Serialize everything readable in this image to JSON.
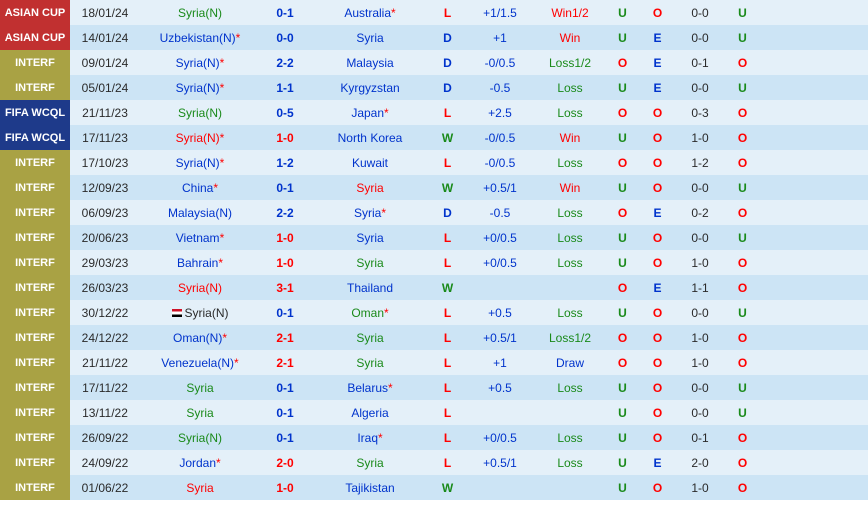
{
  "colors": {
    "row_light": "#e4f0f9",
    "row_dark": "#cce4f5",
    "comp_asian": "#c13030",
    "comp_interf": "#a9a244",
    "comp_wcql": "#1e3a8a",
    "text_default": "#2a2a2a",
    "text_blue": "#0033cc",
    "text_red": "#ff0000",
    "text_green": "#1a8a1a"
  },
  "competitions": {
    "asian": {
      "label": "ASIAN CUP",
      "bg": "#c13030"
    },
    "interf": {
      "label": "INTERF",
      "bg": "#a9a244"
    },
    "wcql": {
      "label": "FIFA WCQL",
      "bg": "#1e3a8a"
    }
  },
  "rows": [
    {
      "comp": "asian",
      "date": "18/01/24",
      "team1": "Syria(N)",
      "team1_color": "#1a8a1a",
      "score": "0-1",
      "score_color": "#0033cc",
      "team2": "Australia",
      "team2_color": "#0033cc",
      "team2_ast": true,
      "wdl": "L",
      "wdl_color": "#ff0000",
      "hcap": "+1/1.5",
      "hcap_color": "#0033cc",
      "odds": "Win1/2",
      "odds_color": "#ff0000",
      "uo1": "U",
      "uo1_color": "#1a8a1a",
      "uo2": "O",
      "uo2_color": "#ff0000",
      "half": "0-0",
      "uo3": "U",
      "uo3_color": "#1a8a1a"
    },
    {
      "comp": "asian",
      "date": "14/01/24",
      "team1": "Uzbekistan(N)",
      "team1_color": "#0033cc",
      "team1_ast": true,
      "score": "0-0",
      "score_color": "#0033cc",
      "team2": "Syria",
      "team2_color": "#0033cc",
      "wdl": "D",
      "wdl_color": "#0033cc",
      "hcap": "+1",
      "hcap_color": "#0033cc",
      "odds": "Win",
      "odds_color": "#ff0000",
      "uo1": "U",
      "uo1_color": "#1a8a1a",
      "uo2": "E",
      "uo2_color": "#0033cc",
      "half": "0-0",
      "uo3": "U",
      "uo3_color": "#1a8a1a"
    },
    {
      "comp": "interf",
      "date": "09/01/24",
      "team1": "Syria(N)",
      "team1_color": "#0033cc",
      "team1_ast": true,
      "score": "2-2",
      "score_color": "#0033cc",
      "team2": "Malaysia",
      "team2_color": "#0033cc",
      "wdl": "D",
      "wdl_color": "#0033cc",
      "hcap": "-0/0.5",
      "hcap_color": "#0033cc",
      "odds": "Loss1/2",
      "odds_color": "#1a8a1a",
      "uo1": "O",
      "uo1_color": "#ff0000",
      "uo2": "E",
      "uo2_color": "#0033cc",
      "half": "0-1",
      "uo3": "O",
      "uo3_color": "#ff0000"
    },
    {
      "comp": "interf",
      "date": "05/01/24",
      "team1": "Syria(N)",
      "team1_color": "#0033cc",
      "team1_ast": true,
      "score": "1-1",
      "score_color": "#0033cc",
      "team2": "Kyrgyzstan",
      "team2_color": "#0033cc",
      "wdl": "D",
      "wdl_color": "#0033cc",
      "hcap": "-0.5",
      "hcap_color": "#0033cc",
      "odds": "Loss",
      "odds_color": "#1a8a1a",
      "uo1": "U",
      "uo1_color": "#1a8a1a",
      "uo2": "E",
      "uo2_color": "#0033cc",
      "half": "0-0",
      "uo3": "U",
      "uo3_color": "#1a8a1a"
    },
    {
      "comp": "wcql",
      "date": "21/11/23",
      "team1": "Syria(N)",
      "team1_color": "#1a8a1a",
      "score": "0-5",
      "score_color": "#0033cc",
      "team2": "Japan",
      "team2_color": "#0033cc",
      "team2_ast": true,
      "wdl": "L",
      "wdl_color": "#ff0000",
      "hcap": "+2.5",
      "hcap_color": "#0033cc",
      "odds": "Loss",
      "odds_color": "#1a8a1a",
      "uo1": "O",
      "uo1_color": "#ff0000",
      "uo2": "O",
      "uo2_color": "#ff0000",
      "half": "0-3",
      "uo3": "O",
      "uo3_color": "#ff0000"
    },
    {
      "comp": "wcql",
      "date": "17/11/23",
      "team1": "Syria(N)",
      "team1_color": "#ff0000",
      "team1_ast": true,
      "score": "1-0",
      "score_color": "#ff0000",
      "team2": "North Korea",
      "team2_color": "#0033cc",
      "wdl": "W",
      "wdl_color": "#1a8a1a",
      "hcap": "-0/0.5",
      "hcap_color": "#0033cc",
      "odds": "Win",
      "odds_color": "#ff0000",
      "uo1": "U",
      "uo1_color": "#1a8a1a",
      "uo2": "O",
      "uo2_color": "#ff0000",
      "half": "1-0",
      "uo3": "O",
      "uo3_color": "#ff0000"
    },
    {
      "comp": "interf",
      "date": "17/10/23",
      "team1": "Syria(N)",
      "team1_color": "#0033cc",
      "team1_ast": true,
      "score": "1-2",
      "score_color": "#0033cc",
      "team2": "Kuwait",
      "team2_color": "#0033cc",
      "wdl": "L",
      "wdl_color": "#ff0000",
      "hcap": "-0/0.5",
      "hcap_color": "#0033cc",
      "odds": "Loss",
      "odds_color": "#1a8a1a",
      "uo1": "O",
      "uo1_color": "#ff0000",
      "uo2": "O",
      "uo2_color": "#ff0000",
      "half": "1-2",
      "uo3": "O",
      "uo3_color": "#ff0000"
    },
    {
      "comp": "interf",
      "date": "12/09/23",
      "team1": "China",
      "team1_color": "#0033cc",
      "team1_ast": true,
      "score": "0-1",
      "score_color": "#0033cc",
      "team2": "Syria",
      "team2_color": "#ff0000",
      "wdl": "W",
      "wdl_color": "#1a8a1a",
      "hcap": "+0.5/1",
      "hcap_color": "#0033cc",
      "odds": "Win",
      "odds_color": "#ff0000",
      "uo1": "U",
      "uo1_color": "#1a8a1a",
      "uo2": "O",
      "uo2_color": "#ff0000",
      "half": "0-0",
      "uo3": "U",
      "uo3_color": "#1a8a1a"
    },
    {
      "comp": "interf",
      "date": "06/09/23",
      "team1": "Malaysia(N)",
      "team1_color": "#0033cc",
      "score": "2-2",
      "score_color": "#0033cc",
      "team2": "Syria",
      "team2_color": "#0033cc",
      "team2_ast": true,
      "wdl": "D",
      "wdl_color": "#0033cc",
      "hcap": "-0.5",
      "hcap_color": "#0033cc",
      "odds": "Loss",
      "odds_color": "#1a8a1a",
      "uo1": "O",
      "uo1_color": "#ff0000",
      "uo2": "E",
      "uo2_color": "#0033cc",
      "half": "0-2",
      "uo3": "O",
      "uo3_color": "#ff0000"
    },
    {
      "comp": "interf",
      "date": "20/06/23",
      "team1": "Vietnam",
      "team1_color": "#0033cc",
      "team1_ast": true,
      "score": "1-0",
      "score_color": "#ff0000",
      "team2": "Syria",
      "team2_color": "#0033cc",
      "wdl": "L",
      "wdl_color": "#ff0000",
      "hcap": "+0/0.5",
      "hcap_color": "#0033cc",
      "odds": "Loss",
      "odds_color": "#1a8a1a",
      "uo1": "U",
      "uo1_color": "#1a8a1a",
      "uo2": "O",
      "uo2_color": "#ff0000",
      "half": "0-0",
      "uo3": "U",
      "uo3_color": "#1a8a1a"
    },
    {
      "comp": "interf",
      "date": "29/03/23",
      "team1": "Bahrain",
      "team1_color": "#0033cc",
      "team1_ast": true,
      "score": "1-0",
      "score_color": "#ff0000",
      "team2": "Syria",
      "team2_color": "#1a8a1a",
      "wdl": "L",
      "wdl_color": "#ff0000",
      "hcap": "+0/0.5",
      "hcap_color": "#0033cc",
      "odds": "Loss",
      "odds_color": "#1a8a1a",
      "uo1": "U",
      "uo1_color": "#1a8a1a",
      "uo2": "O",
      "uo2_color": "#ff0000",
      "half": "1-0",
      "uo3": "O",
      "uo3_color": "#ff0000"
    },
    {
      "comp": "interf",
      "date": "26/03/23",
      "team1": "Syria(N)",
      "team1_color": "#ff0000",
      "score": "3-1",
      "score_color": "#ff0000",
      "team2": "Thailand",
      "team2_color": "#0033cc",
      "wdl": "W",
      "wdl_color": "#1a8a1a",
      "hcap": "",
      "hcap_color": "#0033cc",
      "odds": "",
      "odds_color": "#1a8a1a",
      "uo1": "O",
      "uo1_color": "#ff0000",
      "uo2": "E",
      "uo2_color": "#0033cc",
      "half": "1-1",
      "uo3": "O",
      "uo3_color": "#ff0000"
    },
    {
      "comp": "interf",
      "date": "30/12/22",
      "team1": "Syria(N)",
      "team1_color": "#2a2a2a",
      "team1_flag": true,
      "score": "0-1",
      "score_color": "#0033cc",
      "team2": "Oman",
      "team2_color": "#1a8a1a",
      "team2_ast": true,
      "wdl": "L",
      "wdl_color": "#ff0000",
      "hcap": "+0.5",
      "hcap_color": "#0033cc",
      "odds": "Loss",
      "odds_color": "#1a8a1a",
      "uo1": "U",
      "uo1_color": "#1a8a1a",
      "uo2": "O",
      "uo2_color": "#ff0000",
      "half": "0-0",
      "uo3": "U",
      "uo3_color": "#1a8a1a"
    },
    {
      "comp": "interf",
      "date": "24/12/22",
      "team1": "Oman(N)",
      "team1_color": "#0033cc",
      "team1_ast": true,
      "score": "2-1",
      "score_color": "#ff0000",
      "team2": "Syria",
      "team2_color": "#1a8a1a",
      "wdl": "L",
      "wdl_color": "#ff0000",
      "hcap": "+0.5/1",
      "hcap_color": "#0033cc",
      "odds": "Loss1/2",
      "odds_color": "#1a8a1a",
      "uo1": "O",
      "uo1_color": "#ff0000",
      "uo2": "O",
      "uo2_color": "#ff0000",
      "half": "1-0",
      "uo3": "O",
      "uo3_color": "#ff0000"
    },
    {
      "comp": "interf",
      "date": "21/11/22",
      "team1": "Venezuela(N)",
      "team1_color": "#0033cc",
      "team1_ast": true,
      "score": "2-1",
      "score_color": "#ff0000",
      "team2": "Syria",
      "team2_color": "#1a8a1a",
      "wdl": "L",
      "wdl_color": "#ff0000",
      "hcap": "+1",
      "hcap_color": "#0033cc",
      "odds": "Draw",
      "odds_color": "#0033cc",
      "uo1": "O",
      "uo1_color": "#ff0000",
      "uo2": "O",
      "uo2_color": "#ff0000",
      "half": "1-0",
      "uo3": "O",
      "uo3_color": "#ff0000"
    },
    {
      "comp": "interf",
      "date": "17/11/22",
      "team1": "Syria",
      "team1_color": "#1a8a1a",
      "score": "0-1",
      "score_color": "#0033cc",
      "team2": "Belarus",
      "team2_color": "#0033cc",
      "team2_ast": true,
      "wdl": "L",
      "wdl_color": "#ff0000",
      "hcap": "+0.5",
      "hcap_color": "#0033cc",
      "odds": "Loss",
      "odds_color": "#1a8a1a",
      "uo1": "U",
      "uo1_color": "#1a8a1a",
      "uo2": "O",
      "uo2_color": "#ff0000",
      "half": "0-0",
      "uo3": "U",
      "uo3_color": "#1a8a1a"
    },
    {
      "comp": "interf",
      "date": "13/11/22",
      "team1": "Syria",
      "team1_color": "#1a8a1a",
      "score": "0-1",
      "score_color": "#0033cc",
      "team2": "Algeria",
      "team2_color": "#0033cc",
      "wdl": "L",
      "wdl_color": "#ff0000",
      "hcap": "",
      "hcap_color": "#0033cc",
      "odds": "",
      "odds_color": "#1a8a1a",
      "uo1": "U",
      "uo1_color": "#1a8a1a",
      "uo2": "O",
      "uo2_color": "#ff0000",
      "half": "0-0",
      "uo3": "U",
      "uo3_color": "#1a8a1a"
    },
    {
      "comp": "interf",
      "date": "26/09/22",
      "team1": "Syria(N)",
      "team1_color": "#1a8a1a",
      "score": "0-1",
      "score_color": "#0033cc",
      "team2": "Iraq",
      "team2_color": "#0033cc",
      "team2_ast": true,
      "wdl": "L",
      "wdl_color": "#ff0000",
      "hcap": "+0/0.5",
      "hcap_color": "#0033cc",
      "odds": "Loss",
      "odds_color": "#1a8a1a",
      "uo1": "U",
      "uo1_color": "#1a8a1a",
      "uo2": "O",
      "uo2_color": "#ff0000",
      "half": "0-1",
      "uo3": "O",
      "uo3_color": "#ff0000"
    },
    {
      "comp": "interf",
      "date": "24/09/22",
      "team1": "Jordan",
      "team1_color": "#0033cc",
      "team1_ast": true,
      "score": "2-0",
      "score_color": "#ff0000",
      "team2": "Syria",
      "team2_color": "#1a8a1a",
      "wdl": "L",
      "wdl_color": "#ff0000",
      "hcap": "+0.5/1",
      "hcap_color": "#0033cc",
      "odds": "Loss",
      "odds_color": "#1a8a1a",
      "uo1": "U",
      "uo1_color": "#1a8a1a",
      "uo2": "E",
      "uo2_color": "#0033cc",
      "half": "2-0",
      "uo3": "O",
      "uo3_color": "#ff0000"
    },
    {
      "comp": "interf",
      "date": "01/06/22",
      "team1": "Syria",
      "team1_color": "#ff0000",
      "score": "1-0",
      "score_color": "#ff0000",
      "team2": "Tajikistan",
      "team2_color": "#0033cc",
      "wdl": "W",
      "wdl_color": "#1a8a1a",
      "hcap": "",
      "hcap_color": "#0033cc",
      "odds": "",
      "odds_color": "#1a8a1a",
      "uo1": "U",
      "uo1_color": "#1a8a1a",
      "uo2": "O",
      "uo2_color": "#ff0000",
      "half": "1-0",
      "uo3": "O",
      "uo3_color": "#ff0000"
    }
  ]
}
